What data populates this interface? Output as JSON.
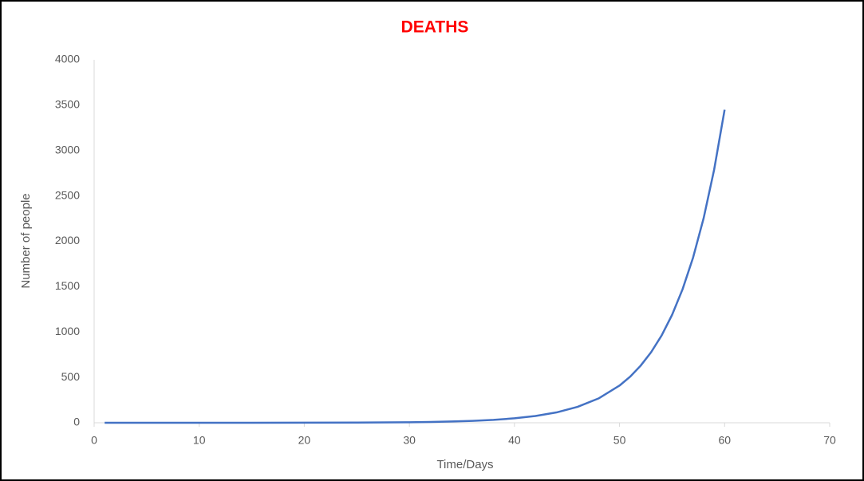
{
  "chart_data": {
    "type": "line",
    "title": "DEATHS",
    "x_label": "Time/Days",
    "y_label": "Number of people",
    "series": [
      {
        "name": "Deaths",
        "color": "#4472c4",
        "x": [
          1,
          5,
          10,
          15,
          20,
          25,
          30,
          32,
          34,
          36,
          38,
          40,
          42,
          44,
          46,
          48,
          50,
          51,
          52,
          53,
          54,
          55,
          56,
          57,
          58,
          59,
          60
        ],
        "values": [
          0,
          0,
          0,
          0.2,
          0.7,
          2,
          6,
          9,
          14,
          21,
          32,
          49,
          75,
          114,
          175,
          268,
          410,
          507,
          628,
          777,
          961,
          1189,
          1472,
          1821,
          2253,
          2788,
          3450
        ]
      }
    ],
    "xlim": [
      0,
      70
    ],
    "xticks": [
      0,
      10,
      20,
      30,
      40,
      50,
      60,
      70
    ],
    "ylim": [
      0,
      4000
    ],
    "yticks": [
      0,
      500,
      1000,
      1500,
      2000,
      2500,
      3000,
      3500,
      4000
    ],
    "grid": false
  }
}
